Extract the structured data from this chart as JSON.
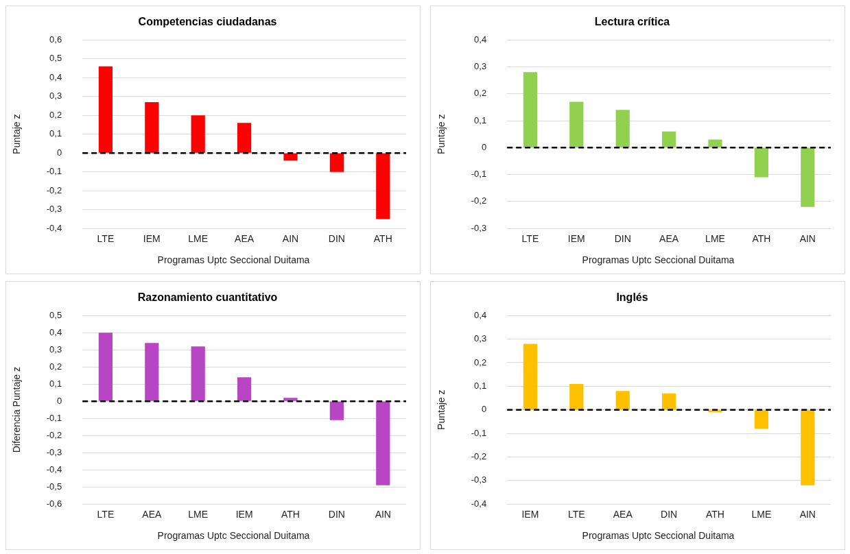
{
  "chart_data": [
    {
      "type": "bar",
      "title": "Competencias ciudadanas",
      "xlabel": "Programas Uptc  Seccional Duitama",
      "ylabel": "Puntaje z",
      "categories": [
        "LTE",
        "IEM",
        "LME",
        "AEA",
        "AIN",
        "DIN",
        "ATH"
      ],
      "values": [
        0.46,
        0.27,
        0.2,
        0.16,
        -0.04,
        -0.1,
        -0.35
      ],
      "color": "#ff0000",
      "ylim": [
        -0.4,
        0.6
      ],
      "yticks": [
        {
          "value": -0.4,
          "label": "-0,4"
        },
        {
          "value": -0.3,
          "label": "-0,3"
        },
        {
          "value": -0.2,
          "label": "-0,2"
        },
        {
          "value": -0.1,
          "label": "-0,1"
        },
        {
          "value": 0,
          "label": "0"
        },
        {
          "value": 0.1,
          "label": "0,1"
        },
        {
          "value": 0.2,
          "label": "0,2"
        },
        {
          "value": 0.3,
          "label": "0,3"
        },
        {
          "value": 0.4,
          "label": "0,4"
        },
        {
          "value": 0.5,
          "label": "0,5"
        },
        {
          "value": 0.6,
          "label": "0,6"
        }
      ],
      "grid": "y",
      "legend": false,
      "ref_lines": [
        {
          "axis": "y",
          "value": 0,
          "color": "#000000",
          "line_style": "dashed"
        }
      ]
    },
    {
      "type": "bar",
      "title": "Lectura crítica",
      "xlabel": "Programas Uptc  Seccional Duitama",
      "ylabel": "Puntaje z",
      "categories": [
        "LTE",
        "IEM",
        "DIN",
        "AEA",
        "LME",
        "ATH",
        "AIN"
      ],
      "values": [
        0.28,
        0.17,
        0.14,
        0.06,
        0.03,
        -0.11,
        -0.22
      ],
      "color": "#92d050",
      "ylim": [
        -0.3,
        0.4
      ],
      "yticks": [
        {
          "value": -0.3,
          "label": "-0,3"
        },
        {
          "value": -0.2,
          "label": "-0,2"
        },
        {
          "value": -0.1,
          "label": "-0,1"
        },
        {
          "value": 0,
          "label": "0"
        },
        {
          "value": 0.1,
          "label": "0,1"
        },
        {
          "value": 0.2,
          "label": "0,2"
        },
        {
          "value": 0.3,
          "label": "0,3"
        },
        {
          "value": 0.4,
          "label": "0,4"
        }
      ],
      "grid": "y",
      "legend": false,
      "ref_lines": [
        {
          "axis": "y",
          "value": 0,
          "color": "#000000",
          "line_style": "dashed"
        }
      ]
    },
    {
      "type": "bar",
      "title": "Razonamiento cuantitativo",
      "xlabel": "Programas Uptc  Seccional Duitama",
      "ylabel": "Diferencia Puntaje z",
      "categories": [
        "LTE",
        "AEA",
        "LME",
        "IEM",
        "ATH",
        "DIN",
        "AIN"
      ],
      "values": [
        0.4,
        0.34,
        0.32,
        0.14,
        0.02,
        -0.11,
        -0.49
      ],
      "color": "#b845c4",
      "ylim": [
        -0.6,
        0.5
      ],
      "yticks": [
        {
          "value": -0.6,
          "label": "-0,6"
        },
        {
          "value": -0.5,
          "label": "-0,5"
        },
        {
          "value": -0.4,
          "label": "-0,4"
        },
        {
          "value": -0.3,
          "label": "-0,3"
        },
        {
          "value": -0.2,
          "label": "-0,2"
        },
        {
          "value": -0.1,
          "label": "-0,1"
        },
        {
          "value": 0,
          "label": "0"
        },
        {
          "value": 0.1,
          "label": "0,1"
        },
        {
          "value": 0.2,
          "label": "0,2"
        },
        {
          "value": 0.3,
          "label": "0,3"
        },
        {
          "value": 0.4,
          "label": "0,4"
        },
        {
          "value": 0.5,
          "label": "0,5"
        }
      ],
      "grid": "y",
      "legend": false,
      "ref_lines": [
        {
          "axis": "y",
          "value": 0,
          "color": "#000000",
          "line_style": "dashed"
        }
      ]
    },
    {
      "type": "bar",
      "title": "Inglés",
      "xlabel": "Programas Uptc  Seccional Duitama",
      "ylabel": "Puntaje z",
      "categories": [
        "IEM",
        "LTE",
        "AEA",
        "DIN",
        "ATH",
        "LME",
        "AIN"
      ],
      "values": [
        0.28,
        0.11,
        0.08,
        0.07,
        -0.01,
        -0.08,
        -0.32
      ],
      "color": "#ffc000",
      "ylim": [
        -0.4,
        0.4
      ],
      "yticks": [
        {
          "value": -0.4,
          "label": "-0,4"
        },
        {
          "value": -0.3,
          "label": "-0,3"
        },
        {
          "value": -0.2,
          "label": "-0,2"
        },
        {
          "value": -0.1,
          "label": "-0,1"
        },
        {
          "value": 0,
          "label": "0"
        },
        {
          "value": 0.1,
          "label": "0,1"
        },
        {
          "value": 0.2,
          "label": "0,2"
        },
        {
          "value": 0.3,
          "label": "0,3"
        },
        {
          "value": 0.4,
          "label": "0,4"
        }
      ],
      "grid": "y",
      "legend": false,
      "ref_lines": [
        {
          "axis": "y",
          "value": 0,
          "color": "#000000",
          "line_style": "dashed"
        }
      ]
    }
  ]
}
